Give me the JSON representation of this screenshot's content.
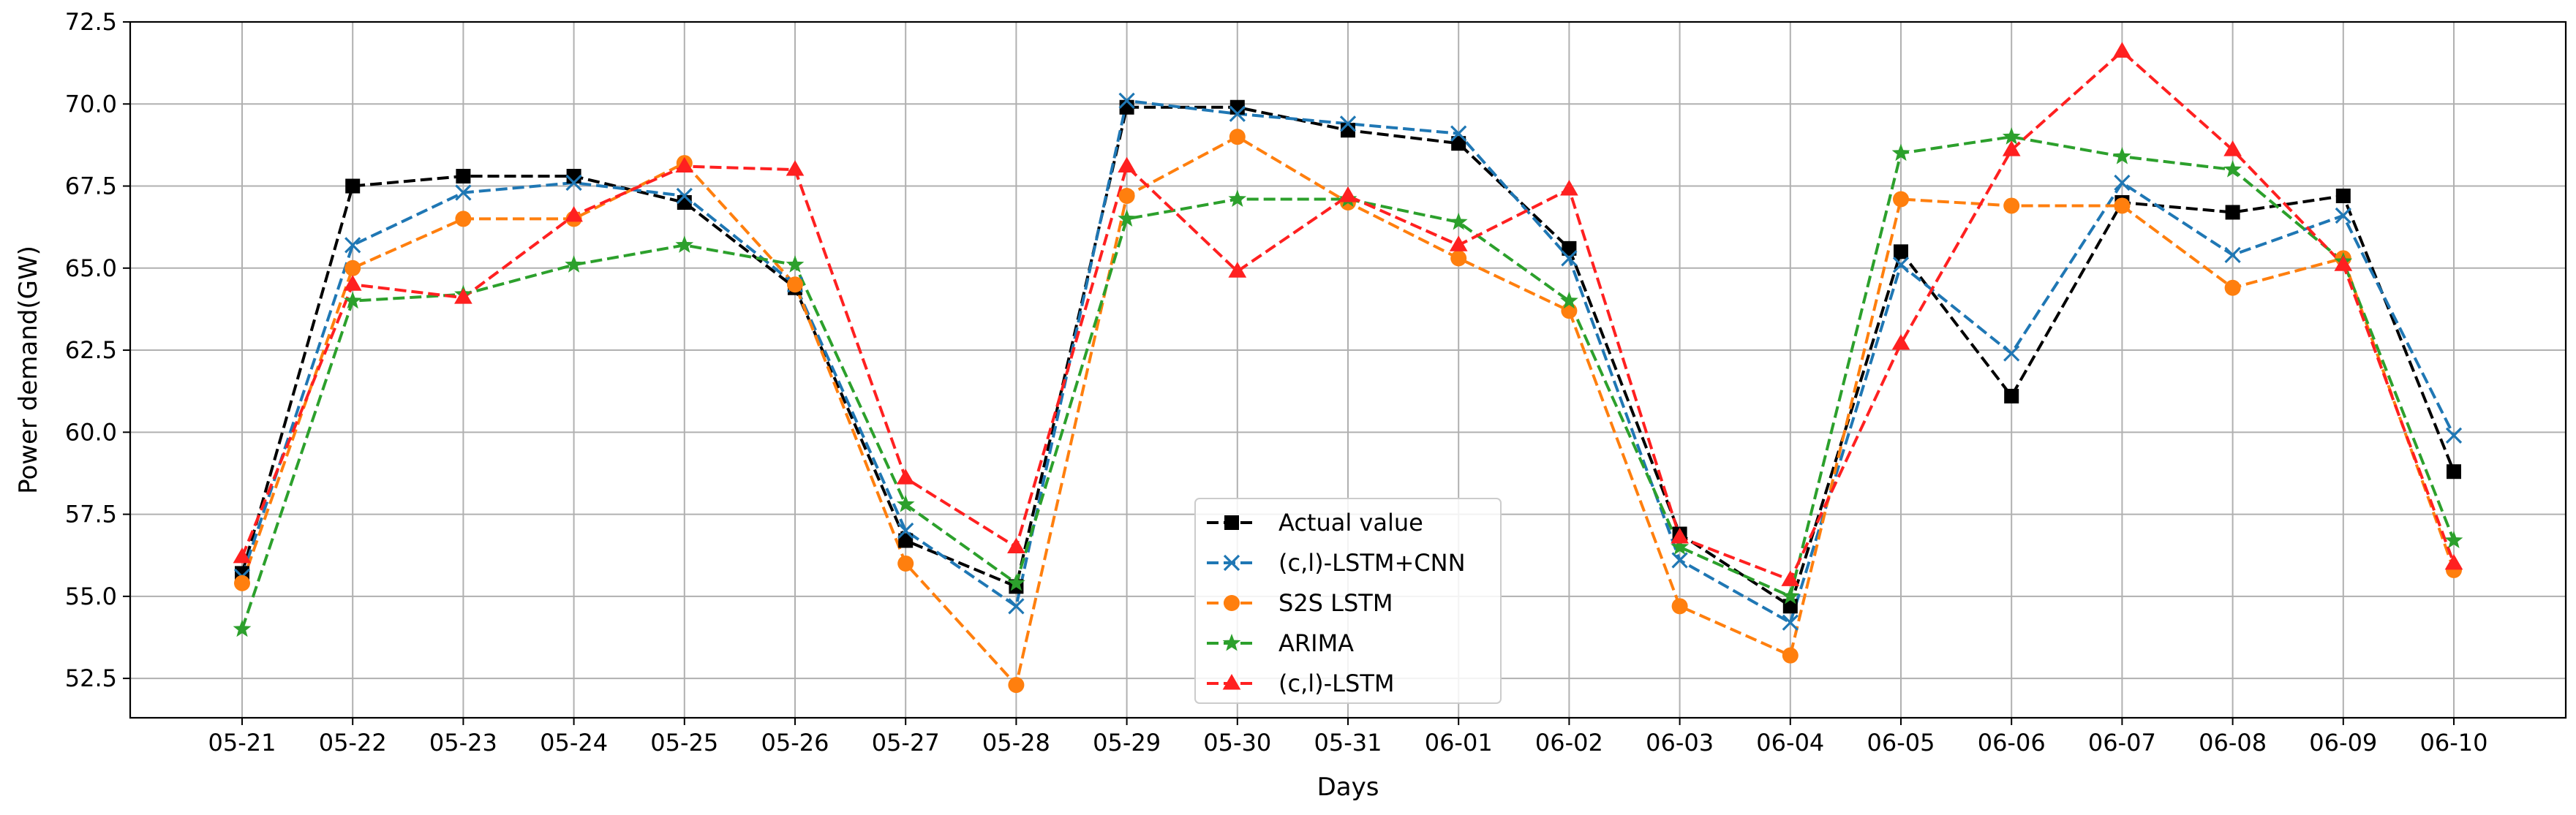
{
  "chart_data": {
    "type": "line",
    "title": "",
    "xlabel": "Days",
    "ylabel": "Power demand(GW)",
    "categories": [
      "05-21",
      "05-22",
      "05-23",
      "05-24",
      "05-25",
      "05-26",
      "05-27",
      "05-28",
      "05-29",
      "05-30",
      "05-31",
      "06-01",
      "06-02",
      "06-03",
      "06-04",
      "06-05",
      "06-06",
      "06-07",
      "06-08",
      "06-09",
      "06-10"
    ],
    "ylim": [
      51.3,
      72.5
    ],
    "yticks": [
      52.5,
      55.0,
      57.5,
      60.0,
      62.5,
      65.0,
      67.5,
      70.0,
      72.5
    ],
    "ytick_labels": [
      "52.5",
      "55.0",
      "57.5",
      "60.0",
      "62.5",
      "65.0",
      "67.5",
      "70.0",
      "72.5"
    ],
    "grid": true,
    "legend_position": "bottom-center",
    "series": [
      {
        "name": "Actual value",
        "color": "#000000",
        "marker": "square",
        "values": [
          55.7,
          67.5,
          67.8,
          67.8,
          67.0,
          64.4,
          56.7,
          55.3,
          69.9,
          69.9,
          69.2,
          68.8,
          65.6,
          56.9,
          54.7,
          65.5,
          61.1,
          67.0,
          66.7,
          67.2,
          58.8
        ]
      },
      {
        "name": "(c,l)-LSTM+CNN",
        "color": "#1f77b4",
        "marker": "x",
        "values": [
          55.6,
          65.7,
          67.3,
          67.6,
          67.2,
          64.5,
          57.0,
          54.7,
          70.1,
          69.7,
          69.4,
          69.1,
          65.3,
          56.1,
          54.2,
          65.1,
          62.4,
          67.6,
          65.4,
          66.6,
          59.9
        ]
      },
      {
        "name": "S2S LSTM",
        "color": "#ff7f0e",
        "marker": "circle",
        "values": [
          55.4,
          65.0,
          66.5,
          66.5,
          68.2,
          64.5,
          56.0,
          52.3,
          67.2,
          69.0,
          67.0,
          65.3,
          63.7,
          54.7,
          53.2,
          67.1,
          66.9,
          66.9,
          64.4,
          65.3,
          55.8
        ]
      },
      {
        "name": "ARIMA",
        "color": "#2ca02c",
        "marker": "star",
        "values": [
          54.0,
          64.0,
          64.2,
          65.1,
          65.7,
          65.1,
          57.8,
          55.4,
          66.5,
          67.1,
          67.1,
          66.4,
          64.0,
          56.5,
          55.0,
          68.5,
          69.0,
          68.4,
          68.0,
          65.2,
          56.7
        ]
      },
      {
        "name": "(c,l)-LSTM",
        "color": "#ff2020",
        "marker": "triangle",
        "values": [
          56.2,
          64.5,
          64.1,
          66.6,
          68.1,
          68.0,
          58.6,
          56.5,
          68.1,
          64.9,
          67.2,
          65.7,
          67.4,
          56.8,
          55.5,
          62.7,
          68.6,
          71.6,
          68.6,
          65.1,
          56.0
        ]
      }
    ]
  }
}
